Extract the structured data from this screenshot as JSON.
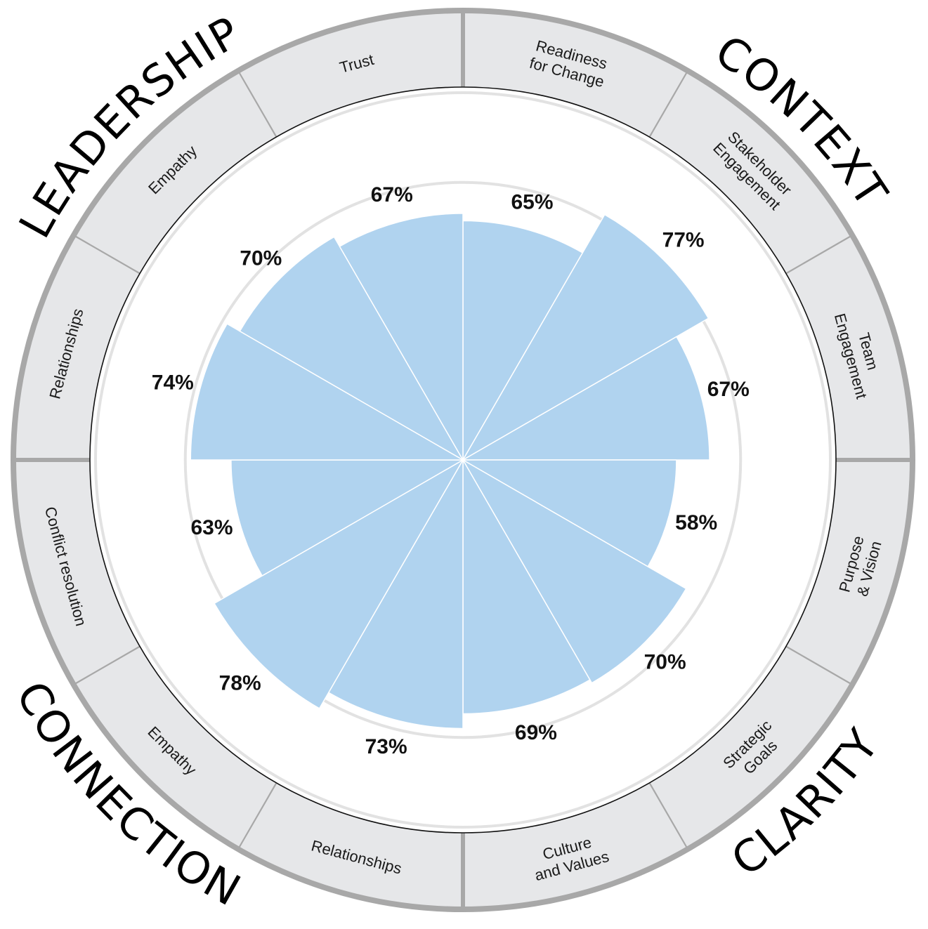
{
  "colors": {
    "bar": "#b0d3ef",
    "band": "#e6e7e9",
    "band_outline": "#a8a8a8",
    "inner_outline": "#111111",
    "gridline": "#e2e2e2",
    "separator": "#ffffff"
  },
  "quadrants": [
    {
      "title": "CONTEXT",
      "start_deg": 0
    },
    {
      "title": "CLARITY",
      "start_deg": 90
    },
    {
      "title": "CONNECTION",
      "start_deg": 180
    },
    {
      "title": "LEADERSHIP",
      "start_deg": 270
    }
  ],
  "chart_data": {
    "type": "polar-bar",
    "title": "",
    "unit": "%",
    "rlim": [
      0,
      100
    ],
    "gridlines": [
      75
    ],
    "start_angle_deg": 0,
    "direction": "clockwise",
    "categories": [
      {
        "label": [
          "Readiness",
          "for Change"
        ],
        "group": "CONTEXT",
        "value": 65,
        "value_label": "65%"
      },
      {
        "label": [
          "Stakeholder",
          "Engagement"
        ],
        "group": "CONTEXT",
        "value": 77,
        "value_label": "77%"
      },
      {
        "label": [
          "Team",
          "Engagement"
        ],
        "group": "CONTEXT",
        "value": 67,
        "value_label": "67%"
      },
      {
        "label": [
          "Purpose",
          "& Vision"
        ],
        "group": "CLARITY",
        "value": 58,
        "value_label": "58%"
      },
      {
        "label": [
          "Strategic",
          "Goals"
        ],
        "group": "CLARITY",
        "value": 70,
        "value_label": "70%"
      },
      {
        "label": [
          "Culture",
          "and Values"
        ],
        "group": "CLARITY",
        "value": 69,
        "value_label": "69%"
      },
      {
        "label": [
          "Relationships"
        ],
        "group": "CONNECTION",
        "value": 73,
        "value_label": "73%"
      },
      {
        "label": [
          "Empathy"
        ],
        "group": "CONNECTION",
        "value": 78,
        "value_label": "78%"
      },
      {
        "label": [
          "Conflict resolution"
        ],
        "group": "CONNECTION",
        "value": 63,
        "value_label": "63%"
      },
      {
        "label": [
          "Relationships"
        ],
        "group": "LEADERSHIP",
        "value": 74,
        "value_label": "74%"
      },
      {
        "label": [
          "Empathy"
        ],
        "group": "LEADERSHIP",
        "value": 70,
        "value_label": "70%"
      },
      {
        "label": [
          "Trust"
        ],
        "group": "LEADERSHIP",
        "value": 67,
        "value_label": "67%"
      }
    ]
  }
}
